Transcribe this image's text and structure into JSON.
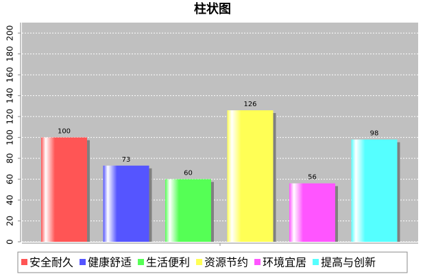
{
  "chart_data": {
    "type": "bar",
    "title": "柱状图",
    "categories": [
      null
    ],
    "series": [
      {
        "name": "安全耐久",
        "color": "#ff5555",
        "values": [
          100
        ]
      },
      {
        "name": "健康舒适",
        "color": "#5555ff",
        "values": [
          73
        ]
      },
      {
        "name": "生活便利",
        "color": "#55ff55",
        "values": [
          60
        ]
      },
      {
        "name": "资源节约",
        "color": "#ffff55",
        "values": [
          126
        ]
      },
      {
        "name": "环境宜居",
        "color": "#ff55ff",
        "values": [
          56
        ]
      },
      {
        "name": "提高与创新",
        "color": "#55ffff",
        "values": [
          98
        ]
      }
    ],
    "ylim": [
      0,
      210
    ],
    "yticks": [
      0,
      20,
      40,
      60,
      80,
      100,
      120,
      140,
      160,
      180,
      200
    ],
    "grid": true
  }
}
